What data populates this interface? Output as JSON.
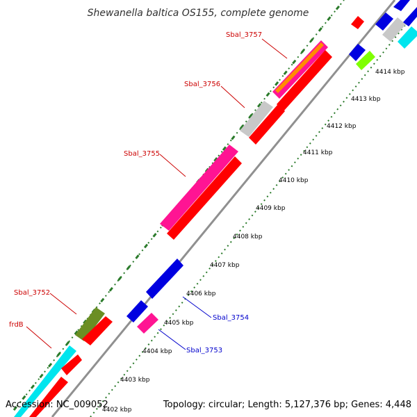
{
  "title": "Shewanella baltica OS155, complete genome",
  "footer": {
    "accession": "Accession: NC_009052",
    "summary": "Topology: circular; Length: 5,127,376 bp; Genes: 4,448"
  },
  "scale_labels": [
    "4402 kbp",
    "4403 kbp",
    "4404 kbp",
    "4405 kbp",
    "4406 kbp",
    "4407 kbp",
    "4408 kbp",
    "4409 kbp",
    "4410 kbp",
    "4411 kbp",
    "4412 kbp",
    "4413 kbp",
    "4414 kbp"
  ],
  "gene_labels": {
    "sbal_3757": "Sbal_3757",
    "sbal_3756": "Sbal_3756",
    "sbal_3755": "Sbal_3755",
    "sbal_3752": "Sbal_3752",
    "frdb": "frdB",
    "sbal_3754": "Sbal_3754",
    "sbal_3753": "Sbal_3753"
  },
  "colors": {
    "cds_forward": "#ff0000",
    "rna": "#ff1493",
    "cds_reverse": "#0000e0",
    "cyan": "#00e5ee",
    "grey": "#c8c8c8",
    "olive": "#6b8e23",
    "lime": "#7fff00",
    "orange": "#ff8c00",
    "backbone": "#909090",
    "ticks_green": "#2a7a2a",
    "label_red": "#cc0000",
    "label_blue": "#0000cc"
  }
}
